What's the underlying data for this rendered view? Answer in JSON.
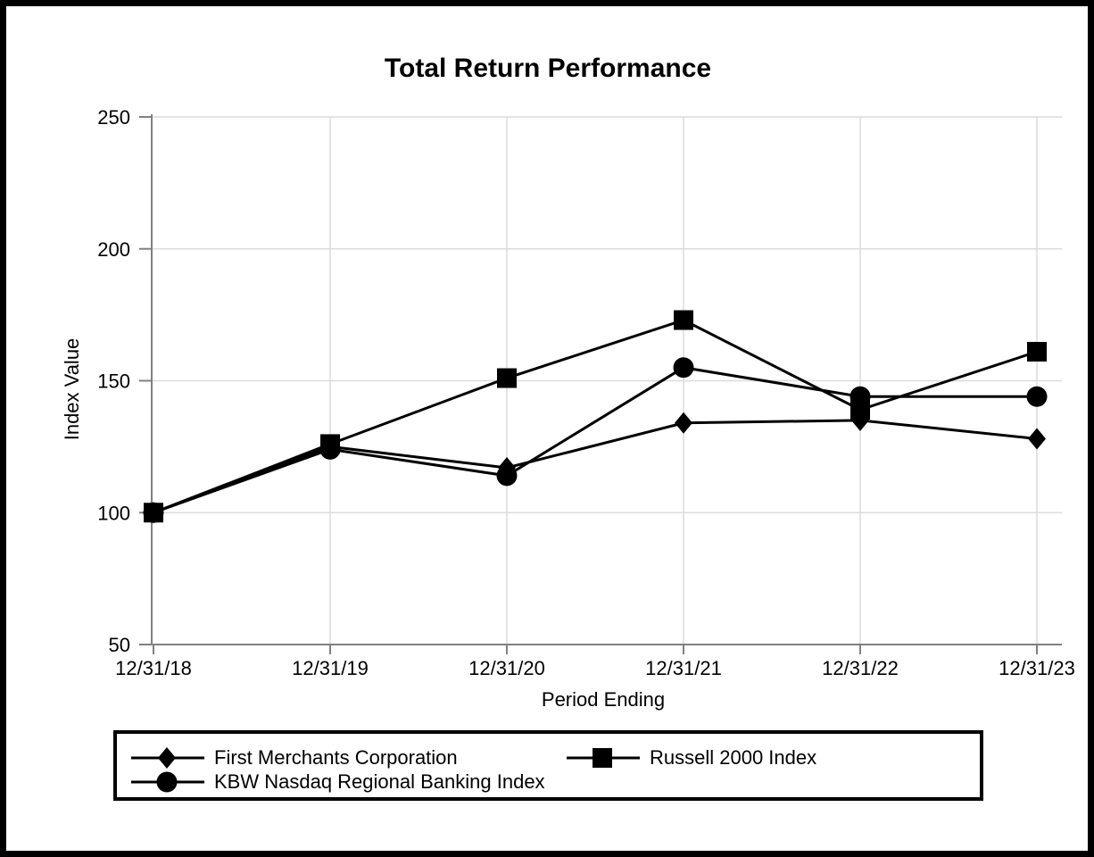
{
  "chart_data": {
    "type": "line",
    "title": "Total Return Performance",
    "xlabel": "Period Ending",
    "ylabel": "Index Value",
    "categories": [
      "12/31/18",
      "12/31/19",
      "12/31/20",
      "12/31/21",
      "12/31/22",
      "12/31/23"
    ],
    "series": [
      {
        "name": "First Merchants Corporation",
        "marker": "diamond",
        "values": [
          100,
          125,
          117,
          134,
          135,
          128
        ]
      },
      {
        "name": "Russell 2000 Index",
        "marker": "square",
        "values": [
          100,
          126,
          151,
          173,
          139,
          161
        ]
      },
      {
        "name": "KBW Nasdaq Regional Banking Index",
        "marker": "circle",
        "values": [
          100,
          124,
          114,
          155,
          144,
          144
        ]
      }
    ],
    "y_ticks": [
      50,
      100,
      150,
      200,
      250
    ],
    "ylim": [
      50,
      250
    ],
    "grid": true,
    "legend_position": "bottom",
    "colors": {
      "series": "#000000",
      "axis": "#808080",
      "gridline": "#dcdcdc",
      "text": "#000000",
      "background": "#ffffff",
      "border": "#000000"
    }
  }
}
